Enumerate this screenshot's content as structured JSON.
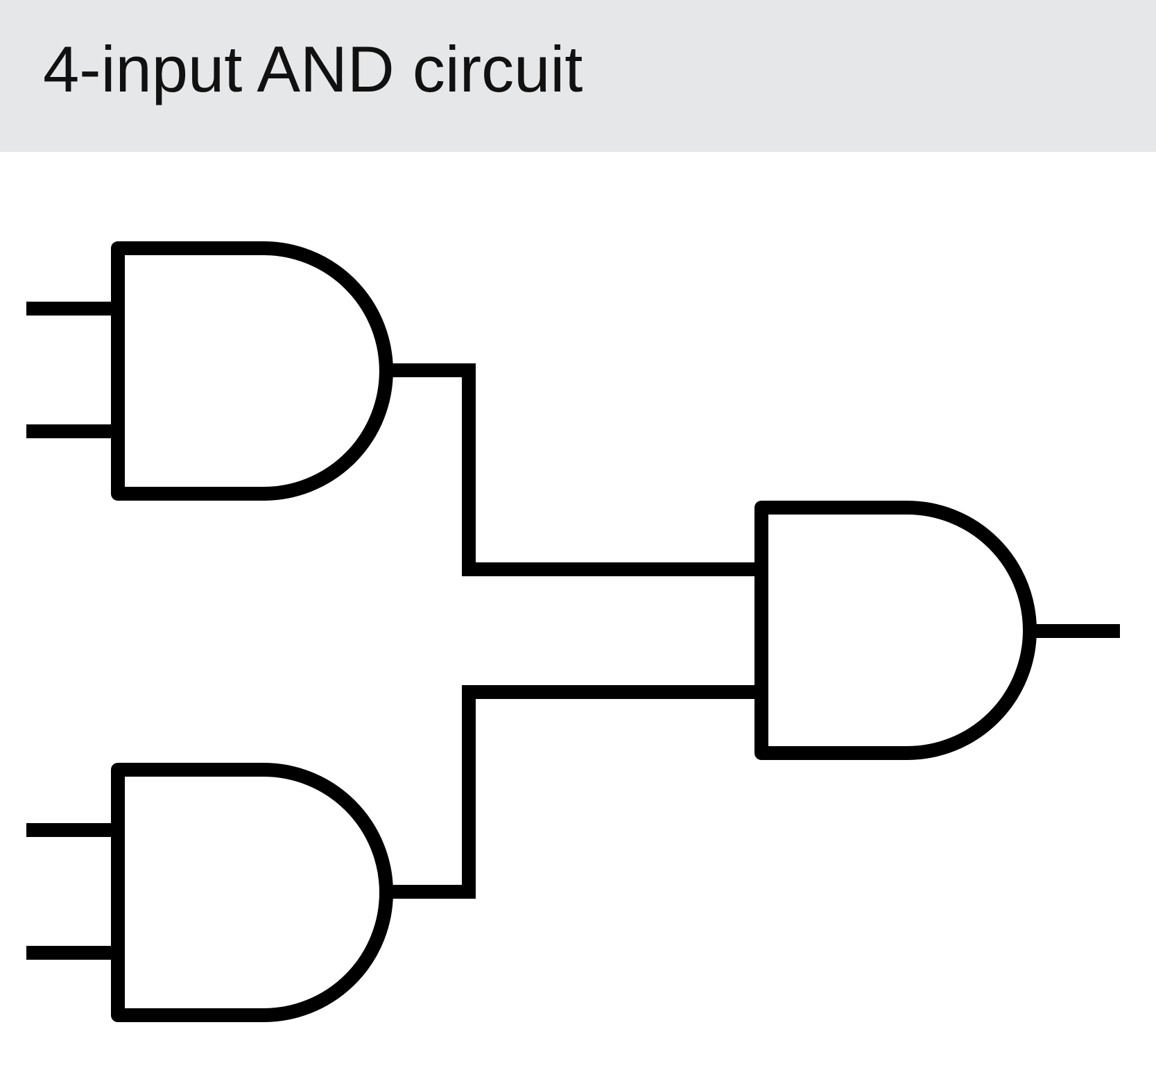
{
  "title": "4-input AND circuit",
  "colors": {
    "header_background": "#e6e7e8",
    "canvas_background": "#ffffff",
    "stroke": "#000000",
    "title_text": "#111111"
  },
  "circuit": {
    "gates": [
      {
        "id": "and-gate-1",
        "type": "AND",
        "inputs": 2
      },
      {
        "id": "and-gate-2",
        "type": "AND",
        "inputs": 2
      },
      {
        "id": "and-gate-3",
        "type": "AND",
        "inputs": 2
      }
    ],
    "connections": [
      {
        "from": "and-gate-1.output",
        "to": "and-gate-3.input-1"
      },
      {
        "from": "and-gate-2.output",
        "to": "and-gate-3.input-2"
      }
    ]
  }
}
